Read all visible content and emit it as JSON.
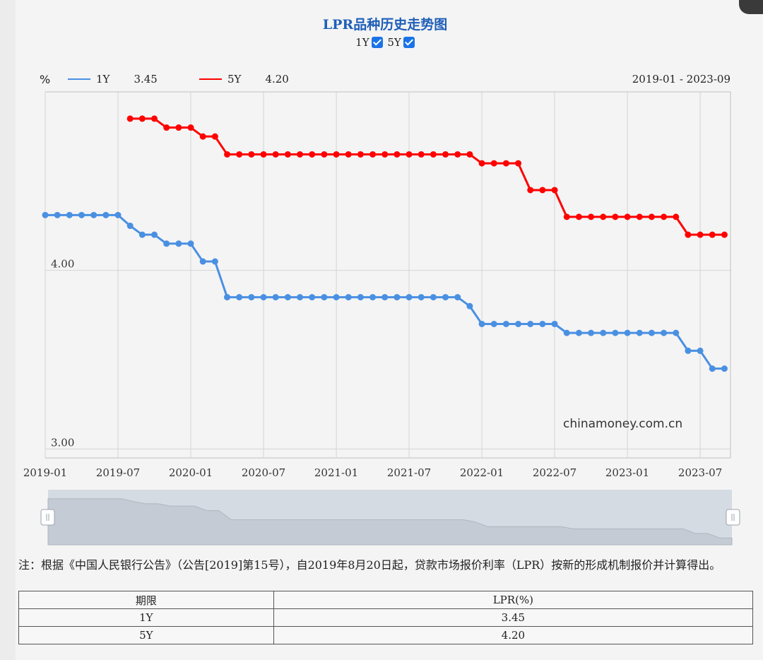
{
  "chart_title": "LPR品种历史走势图",
  "toggles": [
    {
      "label": "1Y",
      "checked": true
    },
    {
      "label": "5Y",
      "checked": true
    }
  ],
  "legend": {
    "unit": "%",
    "items": [
      {
        "name": "1Y",
        "value": "3.45",
        "color": "#4a90e2"
      },
      {
        "name": "5Y",
        "value": "4.20",
        "color": "#ff0000"
      }
    ],
    "range_text": "2019-01 - 2023-09"
  },
  "watermark": "chinamoney.com.cn",
  "chart_data": {
    "type": "line",
    "x_tick_labels": [
      "2019-01",
      "2019-07",
      "2020-01",
      "2020-07",
      "2021-01",
      "2021-07",
      "2022-01",
      "2022-07",
      "2023-01",
      "2023-07"
    ],
    "y_tick_labels": [
      "4.00",
      "3.00"
    ],
    "ylim": [
      2.95,
      5.0
    ],
    "x_range": [
      "2019-01",
      "2023-09"
    ],
    "grid": true,
    "series": [
      {
        "name": "1Y",
        "color": "#4a90e2",
        "x": [
          "2019-01",
          "2019-02",
          "2019-03",
          "2019-04",
          "2019-05",
          "2019-06",
          "2019-07",
          "2019-08",
          "2019-09",
          "2019-10",
          "2019-11",
          "2019-12",
          "2020-01",
          "2020-02",
          "2020-03",
          "2020-04",
          "2020-05",
          "2020-06",
          "2020-07",
          "2020-08",
          "2020-09",
          "2020-10",
          "2020-11",
          "2020-12",
          "2021-01",
          "2021-02",
          "2021-03",
          "2021-04",
          "2021-05",
          "2021-06",
          "2021-07",
          "2021-08",
          "2021-09",
          "2021-10",
          "2021-11",
          "2021-12",
          "2022-01",
          "2022-02",
          "2022-03",
          "2022-04",
          "2022-05",
          "2022-06",
          "2022-07",
          "2022-08",
          "2022-09",
          "2022-10",
          "2022-11",
          "2022-12",
          "2023-01",
          "2023-02",
          "2023-03",
          "2023-04",
          "2023-05",
          "2023-06",
          "2023-07",
          "2023-08",
          "2023-09"
        ],
        "values": [
          4.31,
          4.31,
          4.31,
          4.31,
          4.31,
          4.31,
          4.31,
          4.25,
          4.2,
          4.2,
          4.15,
          4.15,
          4.15,
          4.05,
          4.05,
          3.85,
          3.85,
          3.85,
          3.85,
          3.85,
          3.85,
          3.85,
          3.85,
          3.85,
          3.85,
          3.85,
          3.85,
          3.85,
          3.85,
          3.85,
          3.85,
          3.85,
          3.85,
          3.85,
          3.85,
          3.8,
          3.7,
          3.7,
          3.7,
          3.7,
          3.7,
          3.7,
          3.7,
          3.65,
          3.65,
          3.65,
          3.65,
          3.65,
          3.65,
          3.65,
          3.65,
          3.65,
          3.65,
          3.55,
          3.55,
          3.45,
          3.45
        ]
      },
      {
        "name": "5Y",
        "color": "#ff0000",
        "x": [
          "2019-08",
          "2019-09",
          "2019-10",
          "2019-11",
          "2019-12",
          "2020-01",
          "2020-02",
          "2020-03",
          "2020-04",
          "2020-05",
          "2020-06",
          "2020-07",
          "2020-08",
          "2020-09",
          "2020-10",
          "2020-11",
          "2020-12",
          "2021-01",
          "2021-02",
          "2021-03",
          "2021-04",
          "2021-05",
          "2021-06",
          "2021-07",
          "2021-08",
          "2021-09",
          "2021-10",
          "2021-11",
          "2021-12",
          "2022-01",
          "2022-02",
          "2022-03",
          "2022-04",
          "2022-05",
          "2022-06",
          "2022-07",
          "2022-08",
          "2022-09",
          "2022-10",
          "2022-11",
          "2022-12",
          "2023-01",
          "2023-02",
          "2023-03",
          "2023-04",
          "2023-05",
          "2023-06",
          "2023-07",
          "2023-08",
          "2023-09"
        ],
        "values": [
          4.85,
          4.85,
          4.85,
          4.8,
          4.8,
          4.8,
          4.75,
          4.75,
          4.65,
          4.65,
          4.65,
          4.65,
          4.65,
          4.65,
          4.65,
          4.65,
          4.65,
          4.65,
          4.65,
          4.65,
          4.65,
          4.65,
          4.65,
          4.65,
          4.65,
          4.65,
          4.65,
          4.65,
          4.65,
          4.6,
          4.6,
          4.6,
          4.6,
          4.45,
          4.45,
          4.45,
          4.3,
          4.3,
          4.3,
          4.3,
          4.3,
          4.3,
          4.3,
          4.3,
          4.3,
          4.3,
          4.2,
          4.2,
          4.2,
          4.2
        ]
      }
    ]
  },
  "notes": "注：根据《中国人民银行公告》（公告[2019]第15号），自2019年8月20日起，贷款市场报价利率（LPR）按新的形成机制报价并计算得出。",
  "table": {
    "headers": [
      "期限",
      "LPR(%)"
    ],
    "rows": [
      [
        "1Y",
        "3.45"
      ],
      [
        "5Y",
        "4.20"
      ]
    ]
  }
}
